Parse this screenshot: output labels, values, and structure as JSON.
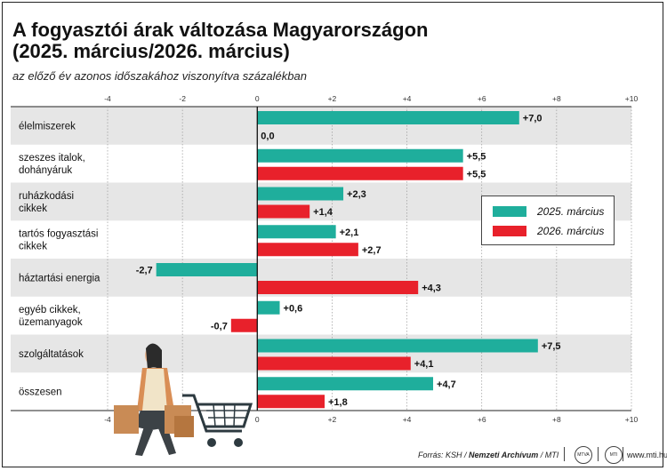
{
  "header": {
    "title_line1": "A fogyasztói árak változása Magyarországon",
    "title_line2": "(2025. március/2026. március)",
    "subtitle": "az előző év azonos időszakához viszonyítva százalékban"
  },
  "chart_data": {
    "type": "bar",
    "orientation": "horizontal",
    "categories": [
      [
        "élelmiszerek"
      ],
      [
        "szeszes italok,",
        "dohányáruk"
      ],
      [
        "ruházkodási",
        "cikkek"
      ],
      [
        "tartós fogyasztási",
        "cikkek"
      ],
      [
        "háztartási energia"
      ],
      [
        "egyéb cikkek,",
        "üzemanyagok"
      ],
      [
        "szolgáltatások"
      ],
      [
        "összesen"
      ]
    ],
    "series": [
      {
        "name": "2025. március",
        "color": "#1fae9c",
        "values": [
          7.0,
          5.5,
          2.3,
          2.1,
          -2.7,
          0.6,
          7.5,
          4.7
        ],
        "labels": [
          "+7,0",
          "+5,5",
          "+2,3",
          "+2,1",
          "-2,7",
          "+0,6",
          "+7,5",
          "+4,7"
        ]
      },
      {
        "name": "2026. március",
        "color": "#e8212b",
        "values": [
          0.0,
          5.5,
          1.4,
          2.7,
          4.3,
          -0.7,
          4.1,
          1.8
        ],
        "labels": [
          "0,0",
          "+5,5",
          "+1,4",
          "+2,7",
          "+4,3",
          "-0,7",
          "+4,1",
          "+1,8"
        ]
      }
    ],
    "xlim": [
      -4,
      10
    ],
    "x_ticks": [
      -4,
      -2,
      0,
      2,
      4,
      6,
      8,
      10
    ],
    "x_tick_labels": [
      "-4",
      "-2",
      "0",
      "+2",
      "+4",
      "+6",
      "+8",
      "+10"
    ],
    "grid": true,
    "legend_position": "right-middle"
  },
  "footer": {
    "source_prefix": "Forrás: KSH / ",
    "source_bold": "Nemzeti Archívum",
    "source_suffix": " / MTI",
    "logo1": "MTVA",
    "logo2": "MTI",
    "site": "www.mti.hu"
  },
  "colors": {
    "row_band": "#e6e6e6",
    "teal": "#1fae9c",
    "red": "#e8212b"
  }
}
